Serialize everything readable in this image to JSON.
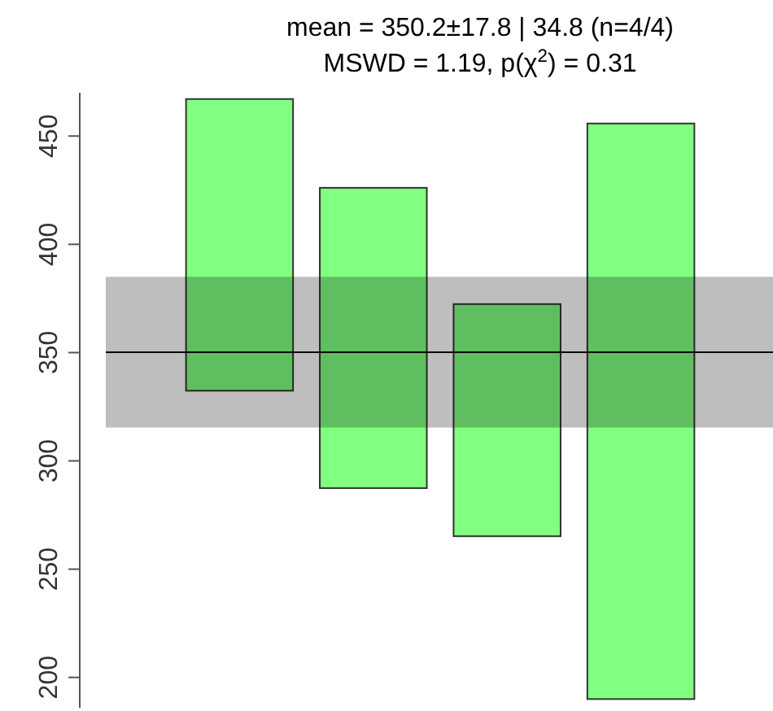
{
  "chart_data": {
    "type": "bar",
    "title": "mean = 350.2±17.8 | 34.8  (n=4/4)",
    "subtitle": "MSWD = 1.19, p(χ$^{2}$) = 0.31",
    "categories": [
      null,
      null,
      null,
      null
    ],
    "base": [
      332.4,
      287.4,
      265.2,
      190.0
    ],
    "values": [
      134.7,
      138.7,
      107.2,
      265.8
    ],
    "color": "#80ff80",
    "ylim": [
      186,
      470
    ],
    "yticks": [
      200,
      250,
      300,
      350,
      400,
      450
    ],
    "tick_labels": "y",
    "grid": false,
    "ref_lines": [
      {
        "axis": "y",
        "value": 350.2,
        "color": "#000000"
      }
    ],
    "bands": [
      {
        "axis": "y",
        "from": 315.4,
        "to": 385.0,
        "color": "#bebebe"
      }
    ]
  }
}
